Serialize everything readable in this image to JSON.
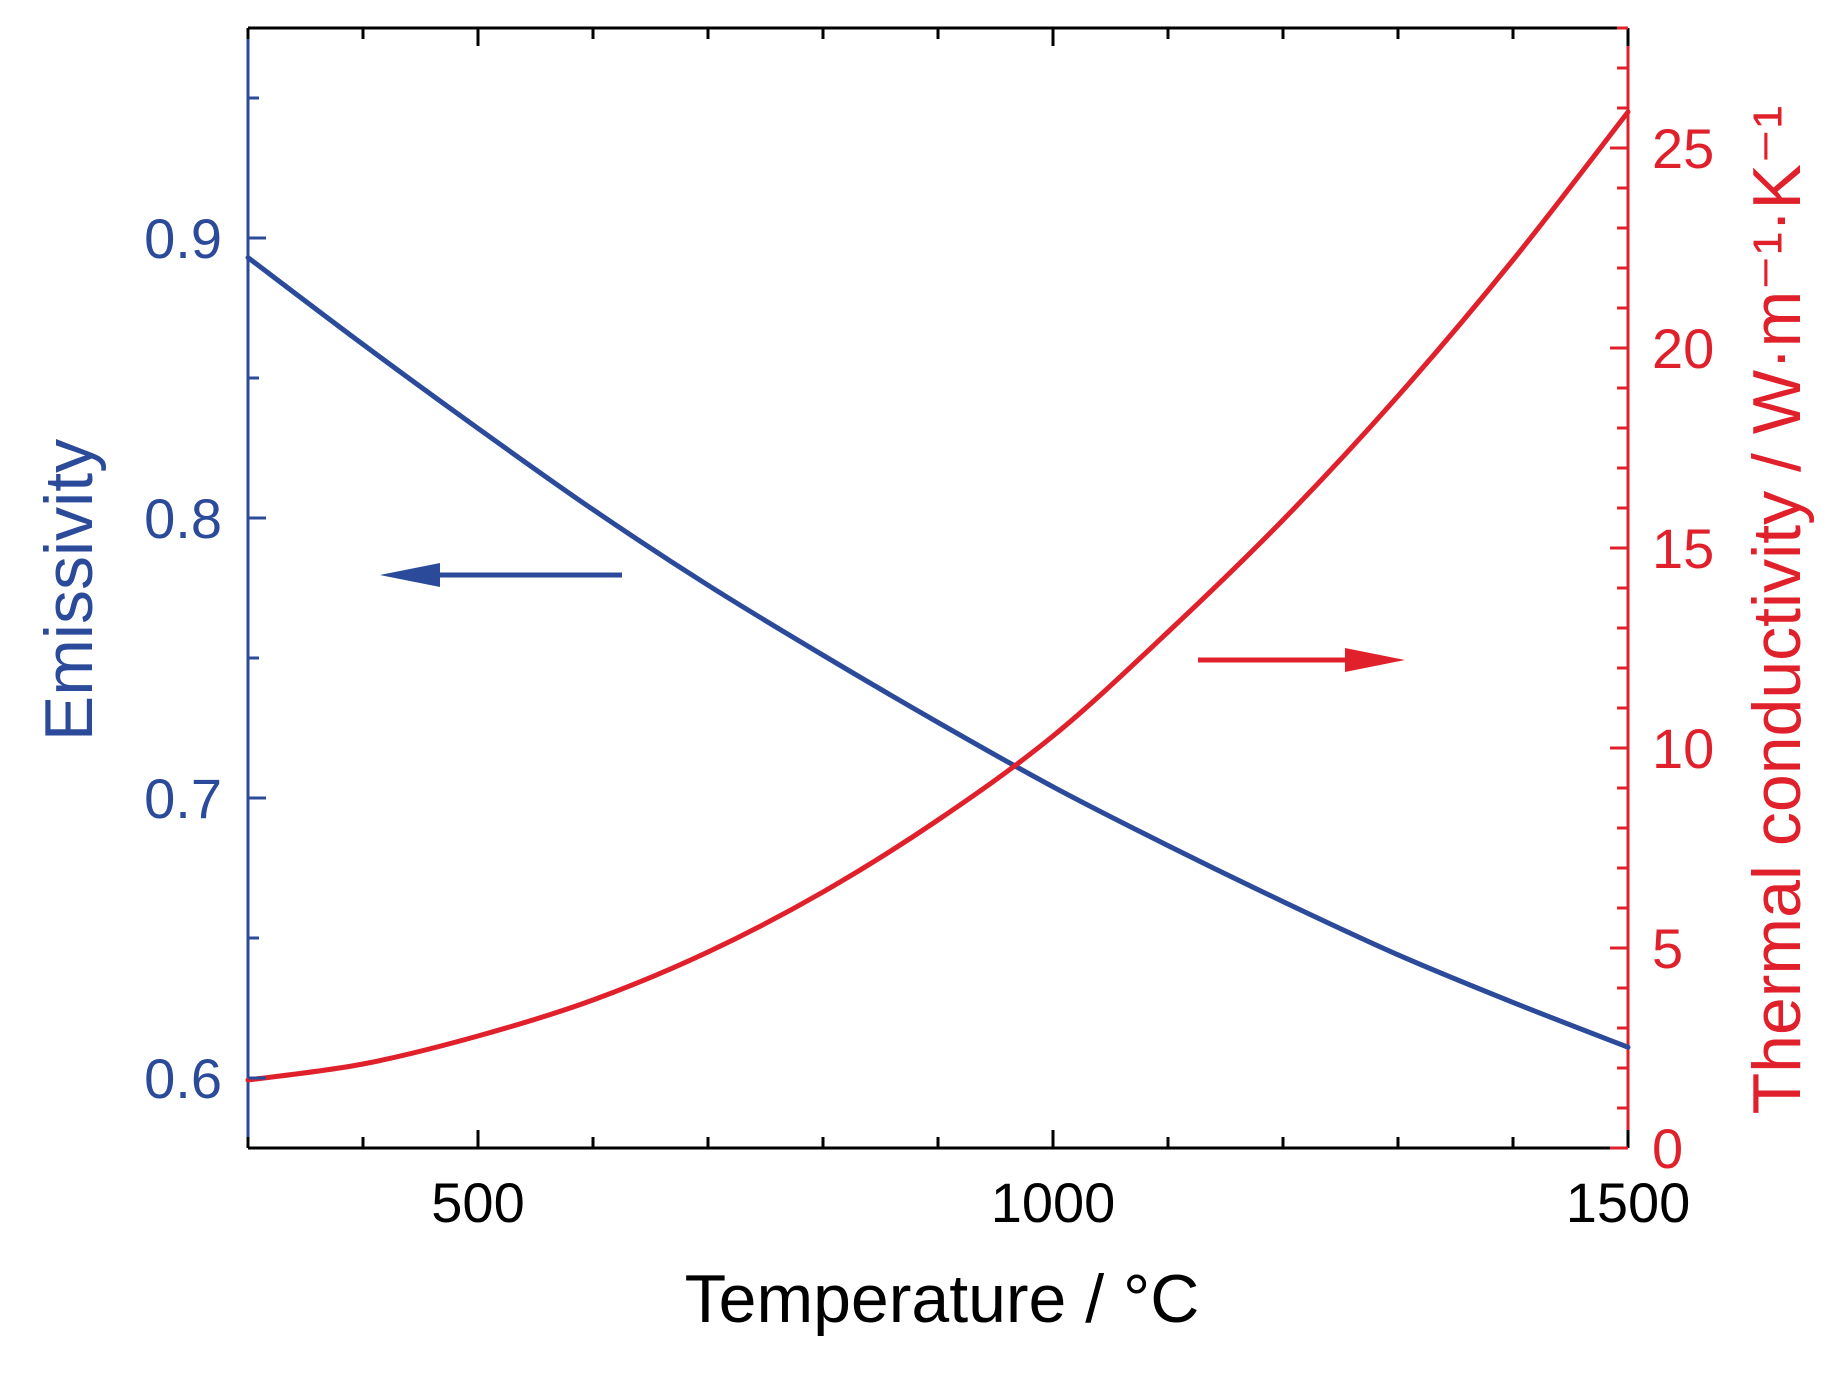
{
  "chart_data": {
    "type": "line",
    "title": "",
    "xlabel": "Temperature / °C",
    "ylabel_left": "Emissivity",
    "ylabel_right": "Thermal conductivity / W·m⁻¹·K⁻¹",
    "xlim": [
      300,
      1500
    ],
    "ylim_left": [
      0.575,
      0.975
    ],
    "ylim_right": [
      0,
      28
    ],
    "x_ticks": [
      500,
      1000,
      1500
    ],
    "x_tick_labels": [
      "500",
      "1000",
      "1500"
    ],
    "y_left_ticks": [
      0.6,
      0.7,
      0.8,
      0.9
    ],
    "y_left_tick_labels": [
      "0.6",
      "0.7",
      "0.8",
      "0.9"
    ],
    "y_right_ticks": [
      0,
      5,
      10,
      15,
      20,
      25
    ],
    "y_right_tick_labels": [
      "0",
      "5",
      "10",
      "15",
      "20",
      "25"
    ],
    "grid": false,
    "legend": "none",
    "series": [
      {
        "axis": "left",
        "color": "#2b4a9a",
        "x": [
          300,
          400,
          500,
          600,
          700,
          800,
          900,
          1000,
          1100,
          1200,
          1300,
          1400,
          1500
        ],
        "y": [
          0.893,
          0.862,
          0.832,
          0.803,
          0.776,
          0.751,
          0.727,
          0.704,
          0.683,
          0.663,
          0.644,
          0.627,
          0.611
        ]
      },
      {
        "axis": "right",
        "color": "#e0202a",
        "x": [
          300,
          400,
          500,
          600,
          700,
          800,
          900,
          1000,
          1100,
          1200,
          1300,
          1400,
          1500
        ],
        "y": [
          1.7,
          2.1,
          2.8,
          3.7,
          4.9,
          6.4,
          8.2,
          10.3,
          12.9,
          15.7,
          18.8,
          22.2,
          25.9
        ]
      }
    ],
    "annotations": [
      {
        "type": "arrow",
        "direction": "left",
        "points_to": "left-axis",
        "color": "#2b4a9a"
      },
      {
        "type": "arrow",
        "direction": "right",
        "points_to": "right-axis",
        "color": "#e0202a"
      }
    ]
  }
}
